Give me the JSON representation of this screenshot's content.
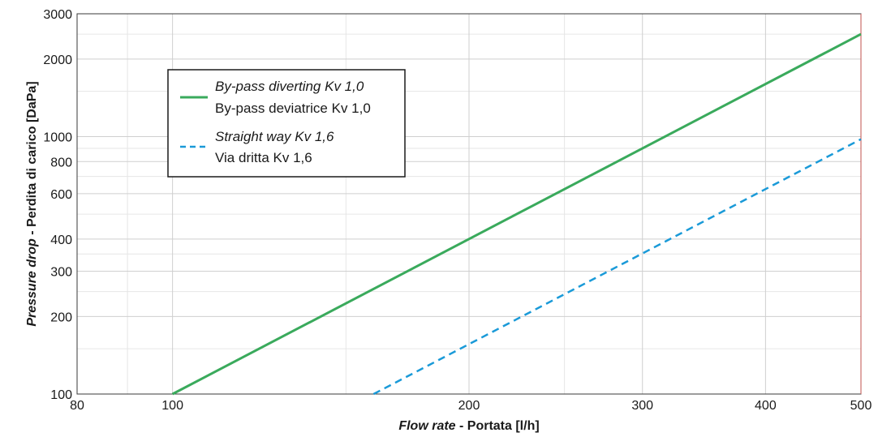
{
  "chart_data": {
    "type": "line",
    "x_scale": "log",
    "y_scale": "log",
    "xlim": [
      80,
      500
    ],
    "ylim": [
      100,
      3000
    ],
    "x_ticks": [
      80,
      100,
      200,
      300,
      400,
      500
    ],
    "x_tick_labels": [
      "80",
      "100",
      "200",
      "300",
      "400",
      "500"
    ],
    "x_minor_grid": [
      90,
      150,
      250
    ],
    "y_ticks": [
      100,
      200,
      300,
      400,
      600,
      800,
      1000,
      2000,
      3000
    ],
    "y_tick_labels": [
      "100",
      "200",
      "300",
      "400",
      "600",
      "800",
      "1000",
      "2000",
      "3000"
    ],
    "y_minor_grid": [
      150,
      250,
      350,
      500,
      700,
      900,
      1500,
      2500
    ],
    "grid": true,
    "xlabel": {
      "italic": "Flow rate",
      "regular": " - Portata [l/h]"
    },
    "ylabel": {
      "italic": "Pressure drop",
      "regular": " - Perdita di carico [DaPa]"
    },
    "legend_position": "top-left",
    "series": [
      {
        "name_en": "By-pass diverting Kv 1,0",
        "name_it": "By-pass deviatrice Kv 1,0",
        "color": "#3aaa5c",
        "dash": "solid",
        "points": [
          [
            100,
            100
          ],
          [
            500,
            2500
          ]
        ]
      },
      {
        "name_en": "Straight way Kv 1,6",
        "name_it": "Via dritta Kv 1,6",
        "color": "#1a9ad8",
        "dash": "dashed",
        "points": [
          [
            160,
            100
          ],
          [
            500,
            977
          ]
        ]
      }
    ]
  }
}
